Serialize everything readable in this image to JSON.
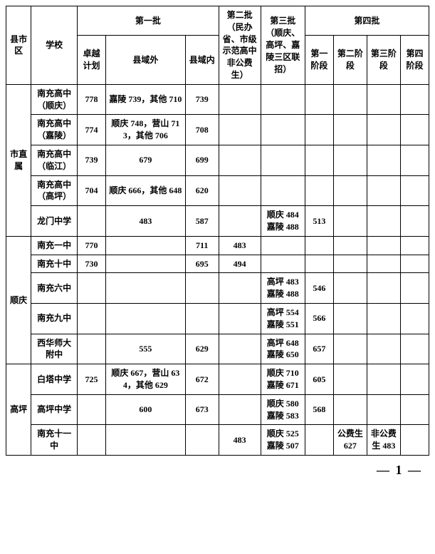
{
  "headers": {
    "district": "县市区",
    "school": "学校",
    "batch1": "第一批",
    "batch1_sub": {
      "zy": "卓越计划",
      "out": "县域外",
      "in": "县域内"
    },
    "batch2": "第二批（民办省、市级示范高中非公费生）",
    "batch3": "第三批（顺庆、高坪、嘉陵三区联招）",
    "batch4": "第四批",
    "batch4_sub": {
      "s1": "第一阶段",
      "s2": "第二阶段",
      "s3": "第三阶段",
      "s4": "第四阶段"
    }
  },
  "districts": [
    {
      "name": "市直属",
      "rows": [
        {
          "school": "南充高中（顺庆）",
          "zy": "778",
          "out": "嘉陵 739，其他 710",
          "in": "739",
          "b2": "",
          "b3": "",
          "s1": "",
          "s2": "",
          "s3": "",
          "s4": ""
        },
        {
          "school": "南充高中（嘉陵）",
          "zy": "774",
          "out": "顺庆 748，营山 713，其他 706",
          "in": "708",
          "b2": "",
          "b3": "",
          "s1": "",
          "s2": "",
          "s3": "",
          "s4": ""
        },
        {
          "school": "南充高中（临江）",
          "zy": "739",
          "out": "679",
          "in": "699",
          "b2": "",
          "b3": "",
          "s1": "",
          "s2": "",
          "s3": "",
          "s4": ""
        },
        {
          "school": "南充高中（高坪）",
          "zy": "704",
          "out": "顺庆 666，其他 648",
          "in": "620",
          "b2": "",
          "b3": "",
          "s1": "",
          "s2": "",
          "s3": "",
          "s4": ""
        },
        {
          "school": "龙门中学",
          "zy": "",
          "out": "483",
          "in": "587",
          "b2": "",
          "b3": "顺庆 484 嘉陵 488",
          "s1": "513",
          "s2": "",
          "s3": "",
          "s4": ""
        }
      ]
    },
    {
      "name": "顺庆",
      "rows": [
        {
          "school": "南充一中",
          "zy": "770",
          "out": "",
          "in": "711",
          "b2": "483",
          "b3": "",
          "s1": "",
          "s2": "",
          "s3": "",
          "s4": ""
        },
        {
          "school": "南充十中",
          "zy": "730",
          "out": "",
          "in": "695",
          "b2": "494",
          "b3": "",
          "s1": "",
          "s2": "",
          "s3": "",
          "s4": ""
        },
        {
          "school": "南充六中",
          "zy": "",
          "out": "",
          "in": "",
          "b2": "",
          "b3": "高坪 483 嘉陵 488",
          "s1": "546",
          "s2": "",
          "s3": "",
          "s4": ""
        },
        {
          "school": "南充九中",
          "zy": "",
          "out": "",
          "in": "",
          "b2": "",
          "b3": "高坪 554 嘉陵 551",
          "s1": "566",
          "s2": "",
          "s3": "",
          "s4": ""
        },
        {
          "school": "西华师大附中",
          "zy": "",
          "out": "555",
          "in": "629",
          "b2": "",
          "b3": "高坪 648 嘉陵 650",
          "s1": "657",
          "s2": "",
          "s3": "",
          "s4": ""
        }
      ]
    },
    {
      "name": "高坪",
      "rows": [
        {
          "school": "白塔中学",
          "zy": "725",
          "out": "顺庆 667，营山 634，其他 629",
          "in": "672",
          "b2": "",
          "b3": "顺庆 710 嘉陵 671",
          "s1": "605",
          "s2": "",
          "s3": "",
          "s4": ""
        },
        {
          "school": "高坪中学",
          "zy": "",
          "out": "600",
          "in": "673",
          "b2": "",
          "b3": "顺庆 580 嘉陵 583",
          "s1": "568",
          "s2": "",
          "s3": "",
          "s4": ""
        },
        {
          "school": "南充十一中",
          "zy": "",
          "out": "",
          "in": "",
          "b2": "483",
          "b3": "顺庆 525 嘉陵 507",
          "s1": "",
          "s2": "公费生 627",
          "s3": "非公费生 483",
          "s4": ""
        }
      ]
    }
  ],
  "page_num": "— 1 —",
  "col_widths": [
    "30",
    "55",
    "34",
    "95",
    "40",
    "50",
    "53",
    "34",
    "40",
    "40",
    "34"
  ]
}
